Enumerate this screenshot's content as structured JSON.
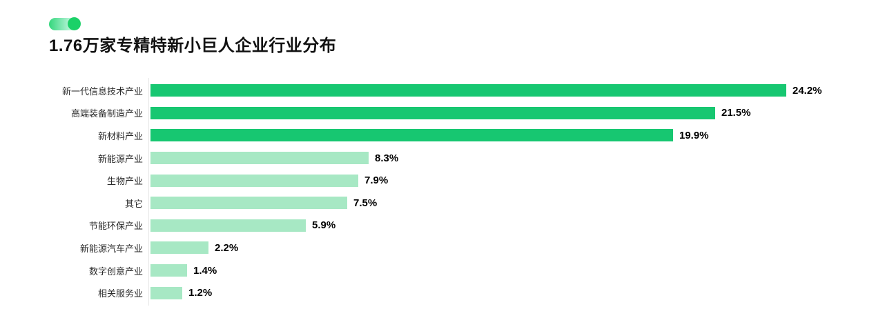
{
  "header": {
    "title": "1.76万家专精特新小巨人企业行业分布",
    "logo": {
      "pill_icon": "toggle-pill-icon",
      "dot_icon": "toggle-dot-icon",
      "pill_color": "#35d77d",
      "dot_color": "#1bd168"
    }
  },
  "colors": {
    "bar_primary": "#17c771",
    "bar_secondary": "#a7e8c4",
    "axis_line": "#e8e8e8",
    "category_text": "#2b2b2b",
    "value_text": "#000000",
    "title_text": "#111111"
  },
  "chart_data": {
    "type": "bar",
    "orientation": "horizontal",
    "title": "1.76万家专精特新小巨人企业行业分布",
    "categories": [
      "新一代信息技术产业",
      "高端装备制造产业",
      "新材料产业",
      "新能源产业",
      "生物产业",
      "其它",
      "节能环保产业",
      "新能源汽车产业",
      "数字创意产业",
      "相关服务业"
    ],
    "values": [
      24.2,
      21.5,
      19.9,
      8.3,
      7.9,
      7.5,
      5.9,
      2.2,
      1.4,
      1.2
    ],
    "value_labels": [
      "24.2%",
      "21.5%",
      "19.9%",
      "8.3%",
      "7.9%",
      "7.5%",
      "5.9%",
      "2.2%",
      "1.4%",
      "1.2%"
    ],
    "bar_colors": [
      "#17c771",
      "#17c771",
      "#17c771",
      "#a7e8c4",
      "#a7e8c4",
      "#a7e8c4",
      "#a7e8c4",
      "#a7e8c4",
      "#a7e8c4",
      "#a7e8c4"
    ],
    "unit": "%",
    "xlim": [
      0,
      25
    ],
    "grid": false,
    "legend": "none",
    "value_label_position": "end-of-bar"
  }
}
